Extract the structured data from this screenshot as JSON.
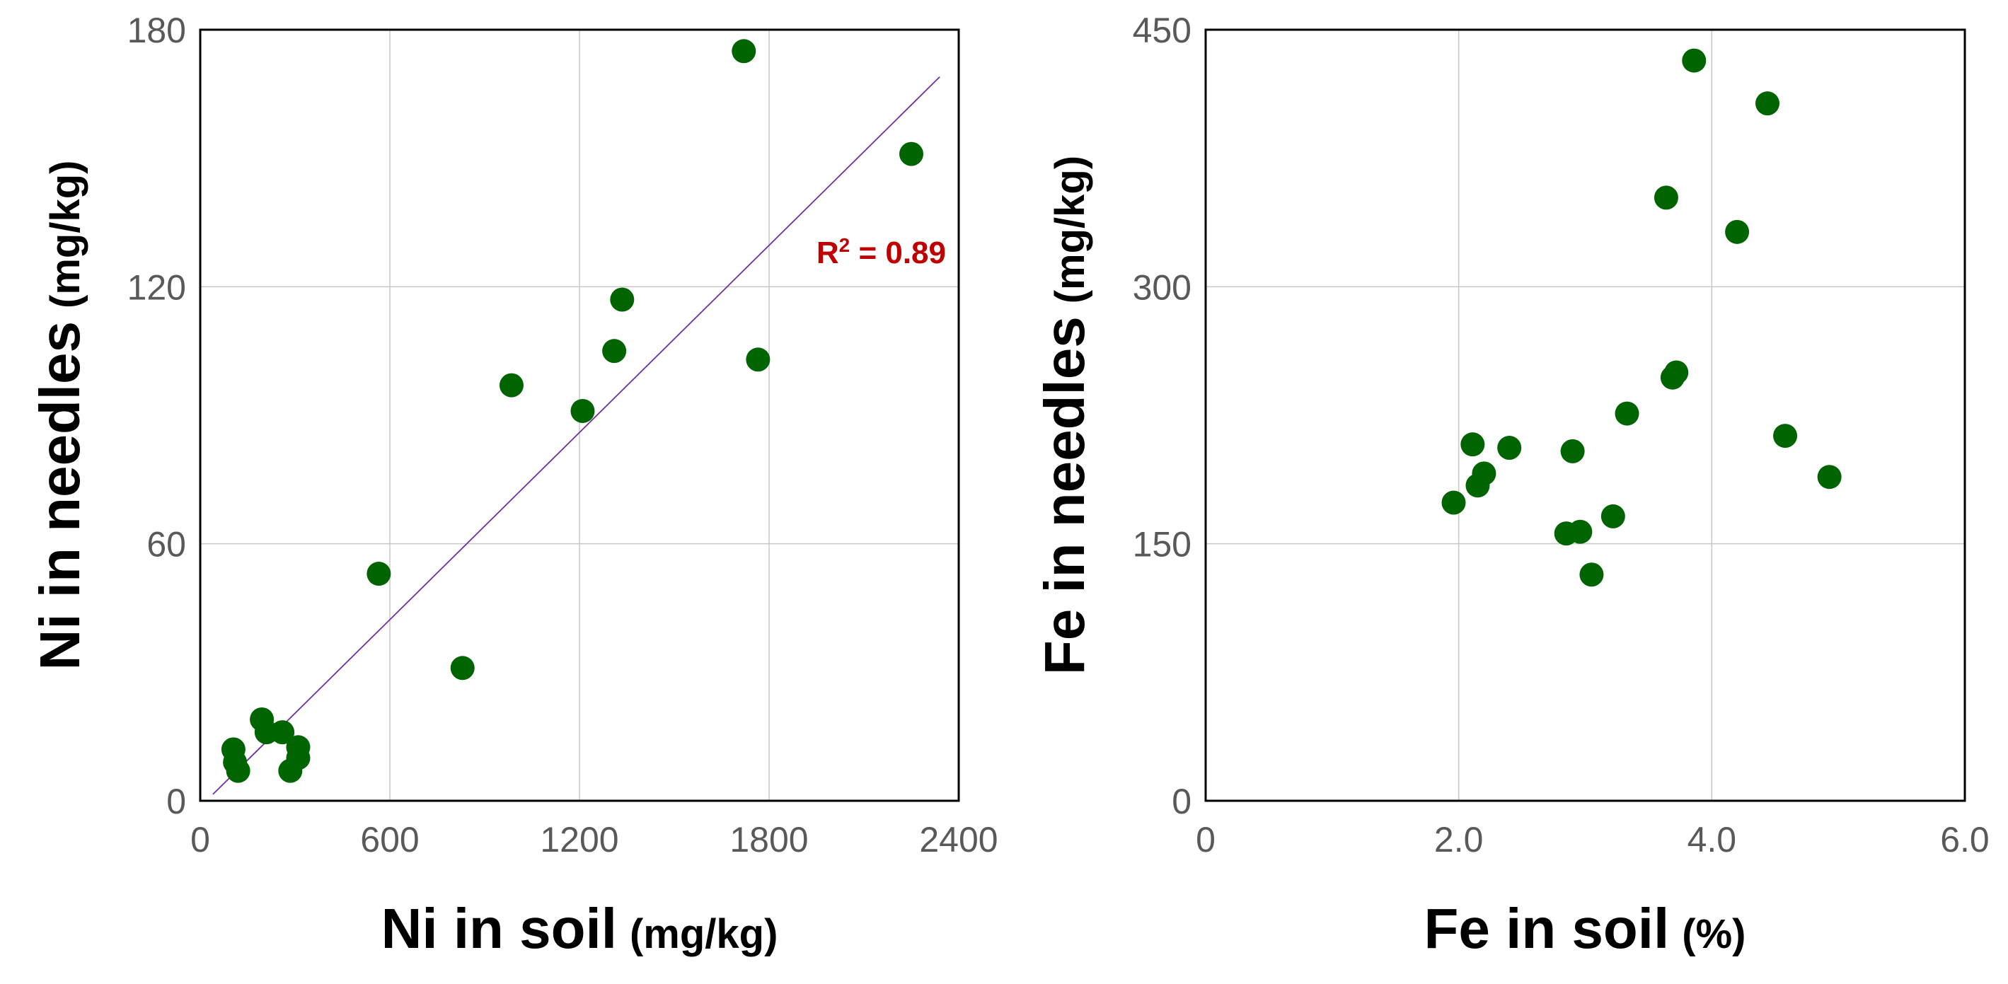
{
  "colors": {
    "point": "#006400",
    "fit_line": "#7030a0",
    "annotation": "#c00000",
    "grid": "#c8c8c8",
    "tick_text": "#595959"
  },
  "chart_data": [
    {
      "type": "scatter",
      "title": "",
      "xlabel": "Ni in soil",
      "xlabel_unit": "(mg/kg)",
      "ylabel": "Ni in needles",
      "ylabel_unit": "(mg/kg)",
      "xlim": [
        0,
        2400
      ],
      "ylim": [
        0,
        180
      ],
      "xticks": [
        0,
        600,
        1200,
        1800,
        2400
      ],
      "yticks": [
        0,
        60,
        120,
        180
      ],
      "grid": true,
      "points": [
        {
          "x": 105,
          "y": 12
        },
        {
          "x": 110,
          "y": 9
        },
        {
          "x": 120,
          "y": 7
        },
        {
          "x": 195,
          "y": 19
        },
        {
          "x": 210,
          "y": 16
        },
        {
          "x": 260,
          "y": 16
        },
        {
          "x": 285,
          "y": 7
        },
        {
          "x": 310,
          "y": 10
        },
        {
          "x": 310,
          "y": 12.5
        },
        {
          "x": 565,
          "y": 53
        },
        {
          "x": 830,
          "y": 31
        },
        {
          "x": 985,
          "y": 97
        },
        {
          "x": 1210,
          "y": 91
        },
        {
          "x": 1310,
          "y": 105
        },
        {
          "x": 1335,
          "y": 117
        },
        {
          "x": 1720,
          "y": 175
        },
        {
          "x": 1765,
          "y": 103
        },
        {
          "x": 2250,
          "y": 151
        }
      ],
      "fit": {
        "x1": 40,
        "y1": 1.5,
        "x2": 2340,
        "y2": 169
      },
      "annotation": {
        "r_label": "R",
        "superscript": "2",
        "value_label": " = 0.89"
      }
    },
    {
      "type": "scatter",
      "title": "",
      "xlabel": "Fe in soil",
      "xlabel_unit": "(%)",
      "ylabel": "Fe in needles",
      "ylabel_unit": "(mg/kg)",
      "xlim": [
        0,
        6.0
      ],
      "ylim": [
        0,
        450
      ],
      "xticks": [
        0,
        2.0,
        4.0,
        6.0
      ],
      "xtick_labels": [
        "0",
        "2.0",
        "4.0",
        "6.0"
      ],
      "yticks": [
        0,
        150,
        300,
        450
      ],
      "grid": true,
      "points": [
        {
          "x": 1.96,
          "y": 174
        },
        {
          "x": 2.11,
          "y": 208
        },
        {
          "x": 2.15,
          "y": 184
        },
        {
          "x": 2.2,
          "y": 191
        },
        {
          "x": 2.4,
          "y": 206
        },
        {
          "x": 2.85,
          "y": 156
        },
        {
          "x": 2.9,
          "y": 204
        },
        {
          "x": 2.96,
          "y": 157
        },
        {
          "x": 3.05,
          "y": 132
        },
        {
          "x": 3.22,
          "y": 166
        },
        {
          "x": 3.33,
          "y": 226
        },
        {
          "x": 3.64,
          "y": 352
        },
        {
          "x": 3.69,
          "y": 247
        },
        {
          "x": 3.72,
          "y": 250
        },
        {
          "x": 3.86,
          "y": 432
        },
        {
          "x": 4.2,
          "y": 332
        },
        {
          "x": 4.44,
          "y": 407
        },
        {
          "x": 4.58,
          "y": 213
        },
        {
          "x": 4.93,
          "y": 189
        }
      ]
    }
  ]
}
